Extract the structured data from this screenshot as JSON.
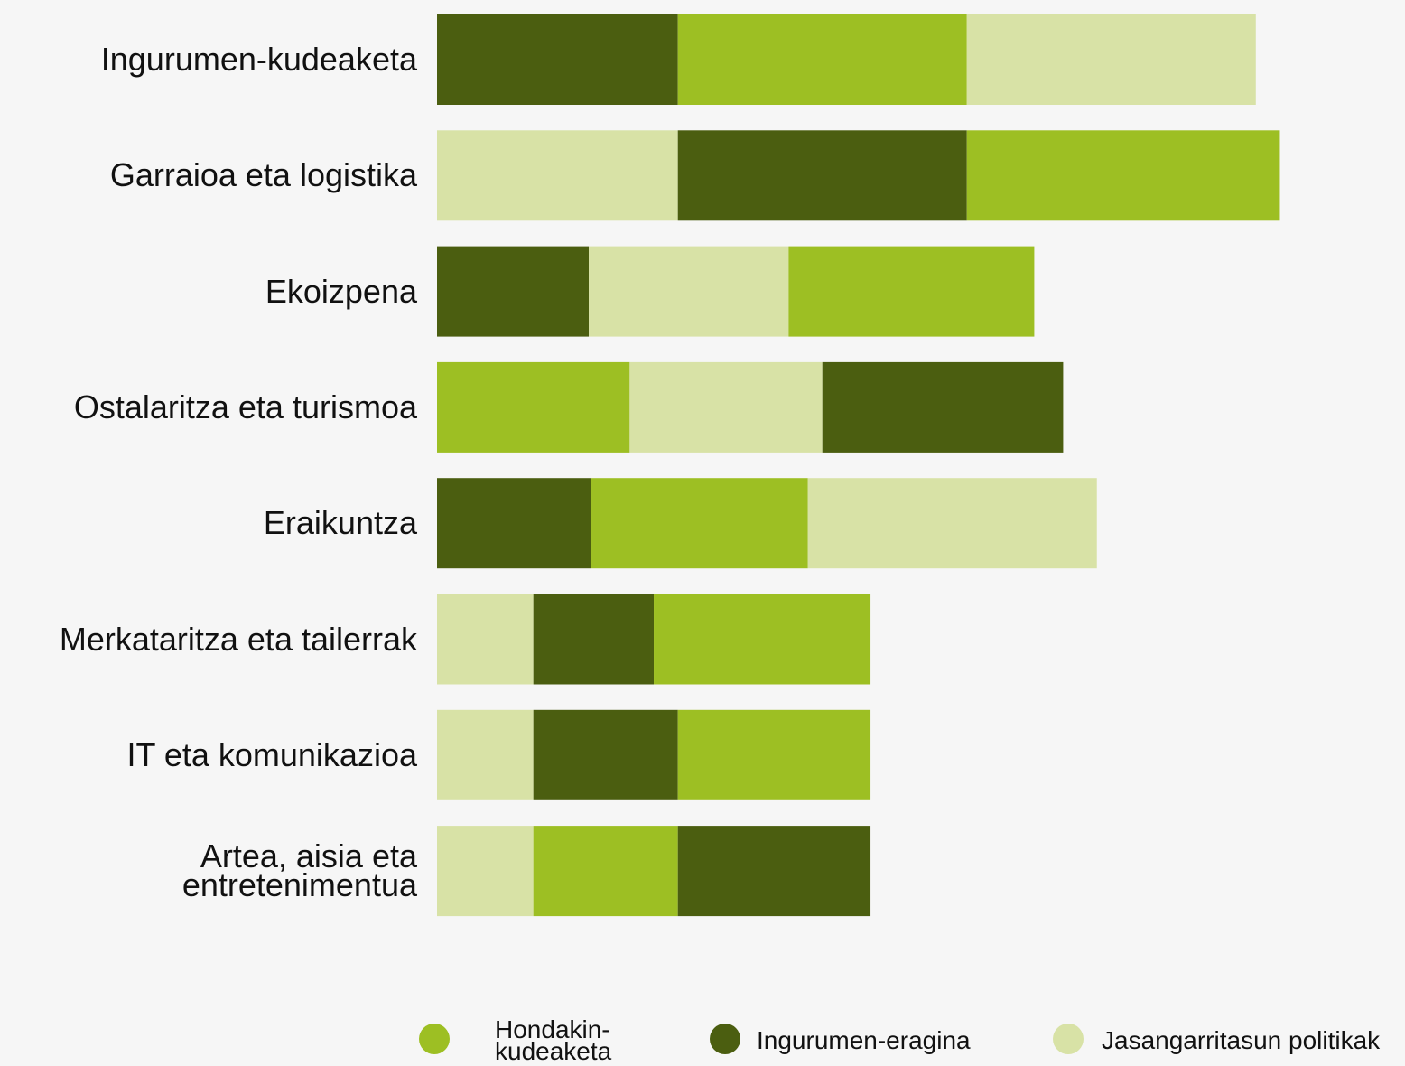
{
  "chart_data": {
    "type": "stacked-barh",
    "categories": [
      "Ingurumen-kudeaketa",
      "Garraioa eta logistika",
      "Ekoizpena",
      "Ostalaritza eta turismoa",
      "Eraikuntza",
      "Merkataritza eta tailerrak",
      "IT eta komunikazioa",
      "Artea, aisia eta entretenimentua"
    ],
    "series": [
      {
        "name": "Hondakin-kudeaketa",
        "color": "#9dbf23",
        "values": [
          12,
          13,
          10.2,
          8,
          9,
          9,
          8,
          6
        ]
      },
      {
        "name": "Ingurumen-eragina",
        "color": "#4b5e10",
        "values": [
          10,
          12,
          6.3,
          10,
          6.4,
          5,
          6,
          8
        ]
      },
      {
        "name": "Jasangarritasun politikak",
        "color": "#d8e2a6",
        "values": [
          12,
          10,
          8.3,
          8,
          12,
          4,
          4,
          4
        ]
      }
    ],
    "stack_order": [
      [
        1,
        0,
        2
      ],
      [
        2,
        1,
        0
      ],
      [
        1,
        2,
        0
      ],
      [
        0,
        2,
        1
      ],
      [
        1,
        0,
        2
      ],
      [
        2,
        1,
        0
      ],
      [
        2,
        1,
        0
      ],
      [
        2,
        0,
        1
      ]
    ]
  }
}
